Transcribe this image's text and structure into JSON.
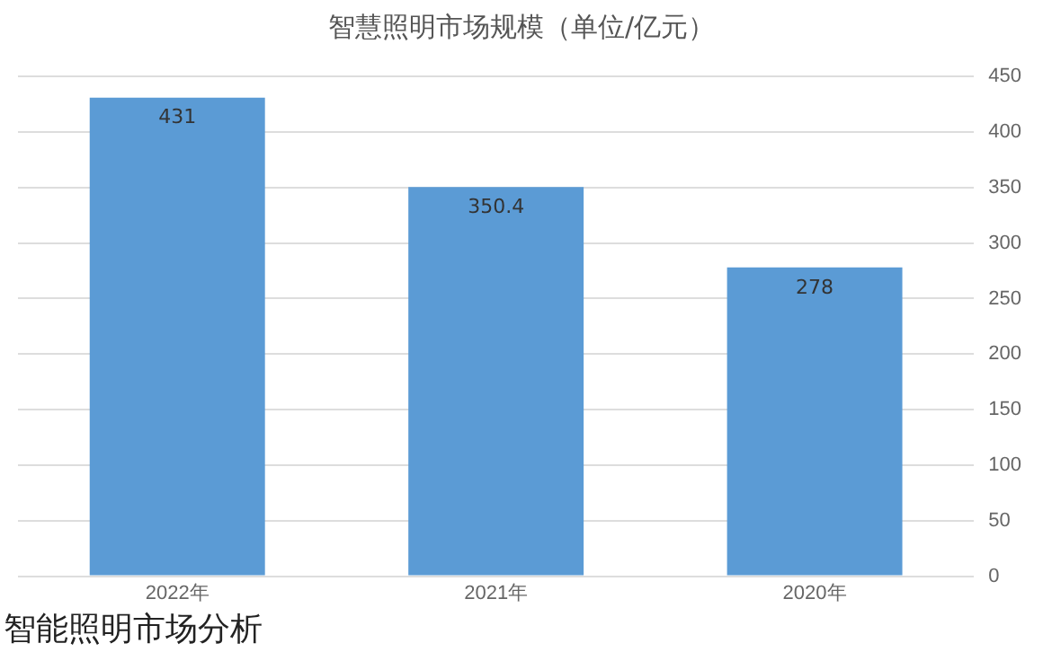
{
  "chart_data": {
    "type": "bar",
    "title": "智慧照明市场规模（单位/亿元）",
    "categories": [
      "2022年",
      "2021年",
      "2020年"
    ],
    "values": [
      431,
      350.4,
      278
    ],
    "color": "#5b9bd5",
    "ylim": [
      0,
      450
    ],
    "yticks": [
      0,
      50,
      100,
      150,
      200,
      250,
      300,
      350,
      400,
      450
    ],
    "grid": "y",
    "data_labels": true,
    "annotations": [
      "智能照明市场分析"
    ]
  }
}
